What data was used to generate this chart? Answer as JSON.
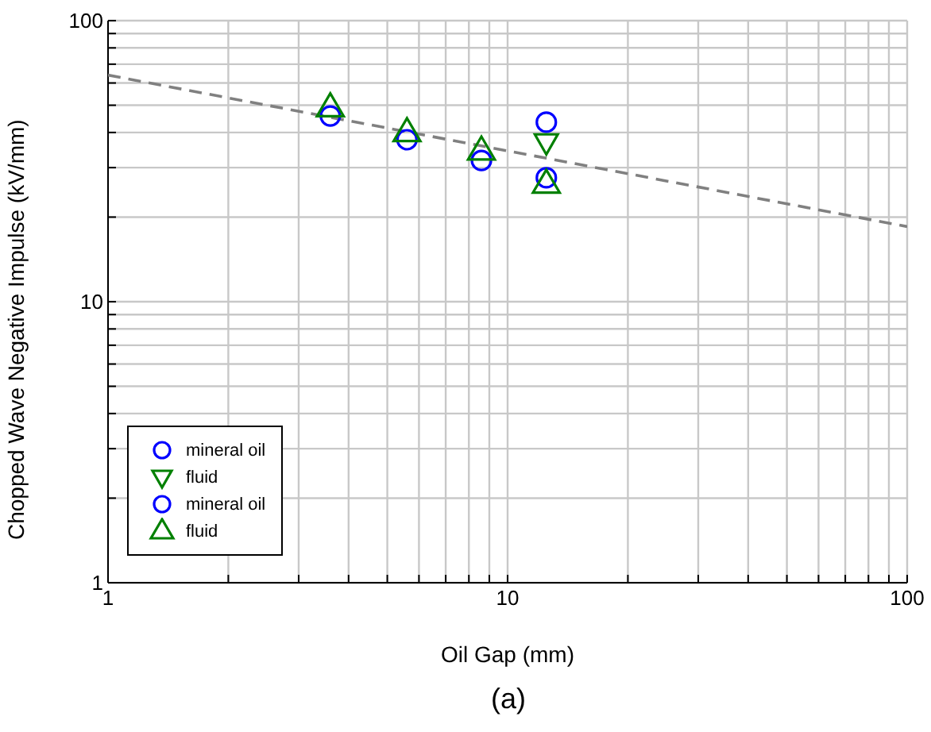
{
  "chart_data": {
    "type": "scatter",
    "xlabel": "Oil Gap (mm)",
    "ylabel": "Chopped Wave Negative Impulse (kV/mm)",
    "annotations": [
      "(a)"
    ],
    "log": "xy",
    "grid": true,
    "legend": "bottom left",
    "xlim": [
      1,
      100
    ],
    "xticks": [
      1,
      {
        "value": 2,
        "label": null
      },
      {
        "value": 3,
        "label": null
      },
      {
        "value": 4,
        "label": null
      },
      {
        "value": 5,
        "label": null
      },
      {
        "value": 6,
        "label": null
      },
      {
        "value": 7,
        "label": null
      },
      {
        "value": 8,
        "label": null
      },
      {
        "value": 9,
        "label": null
      },
      10,
      {
        "value": 20,
        "label": null
      },
      {
        "value": 30,
        "label": null
      },
      {
        "value": 40,
        "label": null
      },
      {
        "value": 50,
        "label": null
      },
      {
        "value": 60,
        "label": null
      },
      {
        "value": 70,
        "label": null
      },
      {
        "value": 80,
        "label": null
      },
      {
        "value": 90,
        "label": null
      },
      100
    ],
    "ylim": [
      1,
      100
    ],
    "yticks": [
      1,
      {
        "value": 2,
        "label": null
      },
      {
        "value": 3,
        "label": null
      },
      {
        "value": 4,
        "label": null
      },
      {
        "value": 5,
        "label": null
      },
      {
        "value": 6,
        "label": null
      },
      {
        "value": 7,
        "label": null
      },
      {
        "value": 8,
        "label": null
      },
      {
        "value": 9,
        "label": null
      },
      10,
      {
        "value": 20,
        "label": null
      },
      {
        "value": 30,
        "label": null
      },
      {
        "value": 40,
        "label": null
      },
      {
        "value": 50,
        "label": null
      },
      {
        "value": 60,
        "label": null
      },
      {
        "value": 70,
        "label": null
      },
      {
        "value": 80,
        "label": null
      },
      {
        "value": 90,
        "label": null
      },
      100
    ],
    "series": [
      {
        "type": "line",
        "color": "#808080",
        "line_style": "dashed",
        "marker": "none",
        "x": [
          1,
          100
        ],
        "values": [
          64,
          18.5
        ]
      },
      {
        "name": "mineral oil",
        "color": "#0000ff",
        "marker": "circle",
        "x": [
          12.5
        ],
        "values": [
          43.5
        ]
      },
      {
        "name": "fluid",
        "color": "#008000",
        "marker": "triangle-down",
        "x": [
          12.5
        ],
        "values": [
          37
        ]
      },
      {
        "name": "mineral oil",
        "color": "#0000ff",
        "marker": "circle",
        "x": [
          3.6,
          5.6,
          8.6,
          12.5
        ],
        "values": [
          45.8,
          37.7,
          31.8,
          27.6
        ]
      },
      {
        "name": "fluid",
        "color": "#008000",
        "marker": "triangle",
        "x": [
          3.6,
          5.6,
          8.6,
          12.5
        ],
        "values": [
          49,
          40,
          34.4,
          26.2
        ]
      }
    ]
  }
}
